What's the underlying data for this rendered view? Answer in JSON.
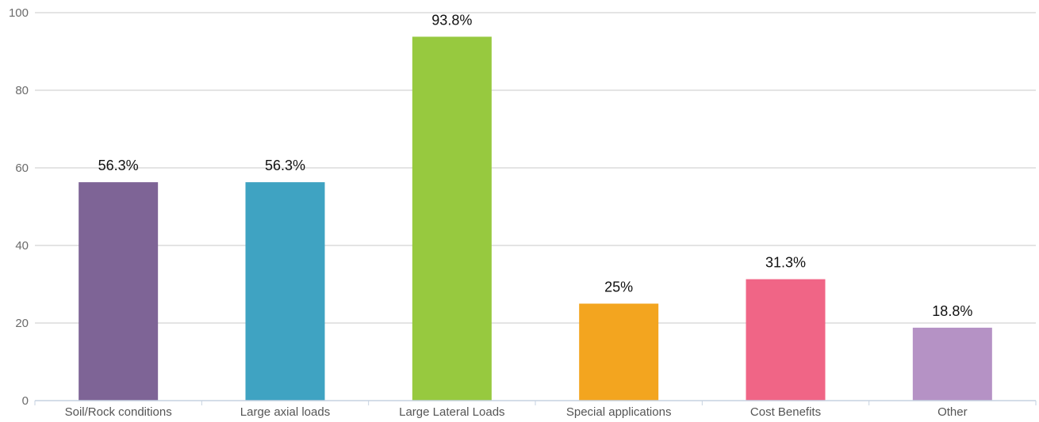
{
  "chart_data": {
    "type": "bar",
    "title": "",
    "xlabel": "",
    "ylabel": "",
    "categories": [
      "Soil/Rock conditions",
      "Large axial loads",
      "Large Lateral Loads",
      "Special applications",
      "Cost Benefits",
      "Other"
    ],
    "values": [
      56.3,
      56.3,
      93.8,
      25,
      31.3,
      18.8
    ],
    "data_labels": [
      "56.3%",
      "56.3%",
      "93.8%",
      "25%",
      "31.3%",
      "18.8%"
    ],
    "colors": [
      "#7e6496",
      "#3fa3c2",
      "#97c93f",
      "#f3a51f",
      "#f06586",
      "#b592c5"
    ],
    "ylim": [
      0,
      100
    ],
    "yticks": [
      0,
      20,
      40,
      60,
      80,
      100
    ],
    "grid": true,
    "legend": "none"
  }
}
